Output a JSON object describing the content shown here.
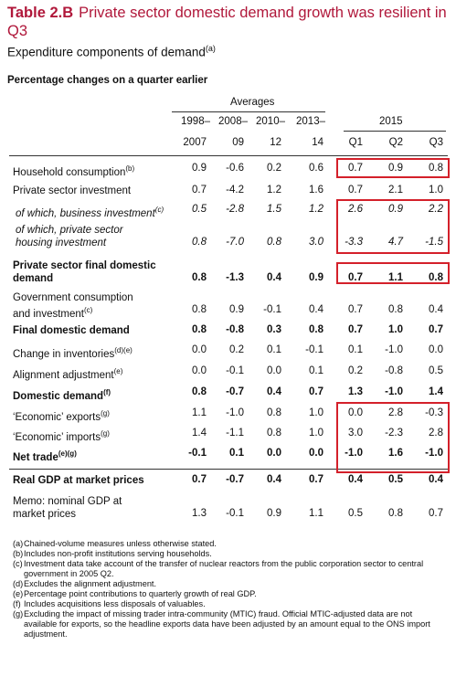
{
  "title": {
    "label": "Table 2.B",
    "text": "Private sector domestic demand growth was resilient in Q3"
  },
  "subtitle": {
    "text": "Expenditure components of demand",
    "note": "(a)"
  },
  "units": "Percentage changes on a quarter earlier",
  "headers": {
    "averages": "Averages",
    "year": "2015",
    "cols": [
      {
        "top": "1998–",
        "bottom": "2007"
      },
      {
        "top": "2008–",
        "bottom": "09"
      },
      {
        "top": "2010–",
        "bottom": "12"
      },
      {
        "top": "2013–",
        "bottom": "14"
      },
      {
        "top": "",
        "bottom": "Q1"
      },
      {
        "top": "",
        "bottom": "Q2"
      },
      {
        "top": "",
        "bottom": "Q3"
      }
    ]
  },
  "rows": [
    {
      "label": "Household consumption",
      "note": "(b)",
      "style": "normal",
      "values": [
        "0.9",
        "-0.6",
        "0.2",
        "0.6",
        "0.7",
        "0.9",
        "0.8"
      ]
    },
    {
      "label": "Private sector investment",
      "note": "",
      "style": "normal",
      "values": [
        "0.7",
        "-4.2",
        "1.2",
        "1.6",
        "0.7",
        "2.1",
        "1.0"
      ]
    },
    {
      "label": "of which, business investment",
      "note": "(c)",
      "style": "ital",
      "values": [
        "0.5",
        "-2.8",
        "1.5",
        "1.2",
        "2.6",
        "0.9",
        "2.2"
      ]
    },
    {
      "label": "of which, private sector",
      "label2": "housing investment",
      "note": "",
      "style": "ital",
      "values": [
        "0.8",
        "-7.0",
        "0.8",
        "3.0",
        "-3.3",
        "4.7",
        "-1.5"
      ]
    },
    {
      "label": "Private sector final domestic",
      "label2": "demand",
      "note": "",
      "style": "bold",
      "values": [
        "0.8",
        "-1.3",
        "0.4",
        "0.9",
        "0.7",
        "1.1",
        "0.8"
      ]
    },
    {
      "label": "Government consumption",
      "label2": "and investment",
      "note": "(c)",
      "style": "normal",
      "values": [
        "0.8",
        "0.9",
        "-0.1",
        "0.4",
        "0.7",
        "0.8",
        "0.4"
      ]
    },
    {
      "label": "Final domestic demand",
      "note": "",
      "style": "bold",
      "values": [
        "0.8",
        "-0.8",
        "0.3",
        "0.8",
        "0.7",
        "1.0",
        "0.7"
      ]
    },
    {
      "label": "Change in inventories",
      "note": "(d)(e)",
      "style": "normal",
      "values": [
        "0.0",
        "0.2",
        "0.1",
        "-0.1",
        "0.1",
        "-1.0",
        "0.0"
      ]
    },
    {
      "label": "Alignment adjustment",
      "note": "(e)",
      "style": "normal",
      "values": [
        "0.0",
        "-0.1",
        "0.0",
        "0.1",
        "0.2",
        "-0.8",
        "0.5"
      ]
    },
    {
      "label": "Domestic demand",
      "note": "(f)",
      "style": "bold",
      "values": [
        "0.8",
        "-0.7",
        "0.4",
        "0.7",
        "1.3",
        "-1.0",
        "1.4"
      ]
    },
    {
      "label": "‘Economic’ exports",
      "note": "(g)",
      "style": "normal",
      "values": [
        "1.1",
        "-1.0",
        "0.8",
        "1.0",
        "0.0",
        "2.8",
        "-0.3"
      ]
    },
    {
      "label": "‘Economic’ imports",
      "note": "(g)",
      "style": "normal",
      "values": [
        "1.4",
        "-1.1",
        "0.8",
        "1.0",
        "3.0",
        "-2.3",
        "2.8"
      ]
    },
    {
      "label": "Net trade",
      "note": "(e)(g)",
      "style": "bold",
      "values": [
        "-0.1",
        "0.1",
        "0.0",
        "0.0",
        "-1.0",
        "1.6",
        "-1.0"
      ]
    },
    {
      "label": "Real GDP at market prices",
      "note": "",
      "style": "bold",
      "values": [
        "0.7",
        "-0.7",
        "0.4",
        "0.7",
        "0.4",
        "0.5",
        "0.4"
      ]
    },
    {
      "label": "Memo: nominal GDP at",
      "label2": "market prices",
      "note": "",
      "style": "normal",
      "values": [
        "1.3",
        "-0.1",
        "0.9",
        "1.1",
        "0.5",
        "0.8",
        "0.7"
      ]
    }
  ],
  "footnotes": [
    {
      "key": "(a)",
      "text": "Chained-volume measures unless otherwise stated."
    },
    {
      "key": "(b)",
      "text": "Includes non-profit institutions serving households."
    },
    {
      "key": "(c)",
      "text": "Investment data take account of the transfer of nuclear reactors from the public corporation sector to central government in 2005 Q2."
    },
    {
      "key": "(d)",
      "text": "Excludes the alignment adjustment."
    },
    {
      "key": "(e)",
      "text": "Percentage point contributions to quarterly growth of real GDP."
    },
    {
      "key": "(f)",
      "text": "Includes acquisitions less disposals of valuables."
    },
    {
      "key": "(g)",
      "text": "Excluding the impact of missing trader intra-community (MTIC) fraud.  Official MTIC-adjusted data are not available for exports, so the headline exports data have been adjusted by an amount equal to the ONS import adjustment."
    }
  ],
  "colors": {
    "title": "#b0173a",
    "highlight": "#d4202a"
  }
}
